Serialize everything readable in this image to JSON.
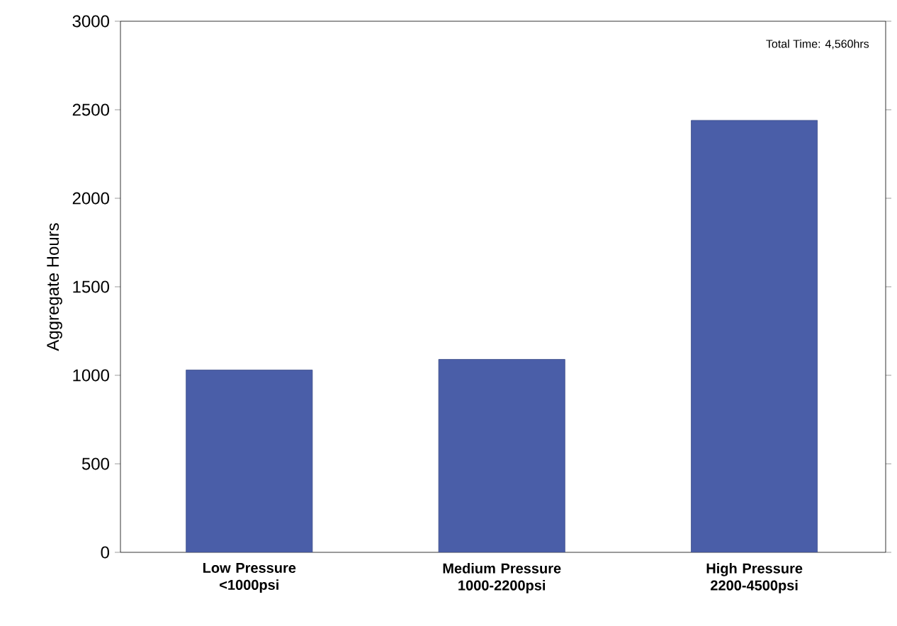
{
  "chart_data": {
    "type": "bar",
    "ylabel": "Aggregate Hours",
    "categories": [
      "Low Pressure <1000psi",
      "Medium Pressure 1000-2200psi",
      "High Pressure 2200-4500psi"
    ],
    "values": [
      1030,
      1090,
      2440
    ],
    "color": "#4a5ea8",
    "ylim": [
      0,
      3000
    ],
    "yticks": [
      0,
      500,
      1000,
      1500,
      2000,
      2500,
      3000
    ],
    "grid": false,
    "annotations": [
      "Total Time: 4,560hrs"
    ]
  }
}
